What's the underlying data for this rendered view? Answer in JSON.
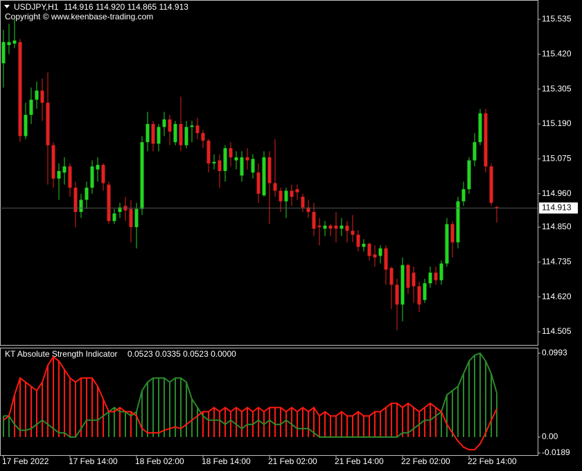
{
  "chart_data": [
    {
      "type": "candlestick",
      "title": "USDJPY,H1",
      "quote": "114.916 114.920 114.865 114.913",
      "subtitle": "Copyright © www.keenbase-trading.com",
      "up_color": "#22d622",
      "down_color": "#e3211f",
      "price_line_color": "#555555",
      "categories": [
        "17 Feb 2022",
        null,
        null,
        null,
        null,
        null,
        null,
        null,
        null,
        null,
        null,
        null,
        "17 Feb 14:00",
        null,
        null,
        null,
        null,
        null,
        null,
        null,
        null,
        null,
        null,
        null,
        "18 Feb 02:00",
        null,
        null,
        null,
        null,
        null,
        null,
        null,
        null,
        null,
        null,
        null,
        "18 Feb 14:00",
        null,
        null,
        null,
        null,
        null,
        null,
        null,
        null,
        null,
        null,
        null,
        "21 Feb 02:00",
        null,
        null,
        null,
        null,
        null,
        null,
        null,
        null,
        null,
        null,
        null,
        "21 Feb 14:00",
        null,
        null,
        null,
        null,
        null,
        null,
        null,
        null,
        null,
        null,
        null,
        "22 Feb 02:00",
        null,
        null,
        null,
        null,
        null,
        null,
        null,
        null,
        null,
        null,
        null,
        "22 Feb 14:00",
        null,
        null,
        null,
        null,
        null
      ],
      "open": [
        115.39,
        115.45,
        115.455,
        115.46,
        115.15,
        115.22,
        115.27,
        115.3,
        115.26,
        115.12,
        115.01,
        115.03,
        115.05,
        114.98,
        114.9,
        114.94,
        114.98,
        115.04,
        115.055,
        114.99,
        114.87,
        114.9,
        114.92,
        114.91,
        114.85,
        114.91,
        115.13,
        115.19,
        115.125,
        115.18,
        115.205,
        115.13,
        115.19,
        115.12,
        115.18,
        115.185,
        115.16,
        115.135,
        115.06,
        115.07,
        115.035,
        115.11,
        115.07,
        115.02,
        115.08,
        115.03,
        115.03,
        114.955,
        115.08,
        114.995,
        114.97,
        114.935,
        114.97,
        114.975,
        114.95,
        114.915,
        114.9,
        114.855,
        114.845,
        114.855,
        114.855,
        114.845,
        114.855,
        114.838,
        114.825,
        114.785,
        114.795,
        114.76,
        114.755,
        114.78,
        114.715,
        114.66,
        114.595,
        114.725,
        114.7,
        114.655,
        114.61,
        114.665,
        114.7,
        114.675,
        114.73,
        114.86,
        114.8,
        114.935,
        114.975,
        115.07,
        115.13,
        115.225,
        115.05,
        114.916
      ],
      "high": [
        115.5,
        115.52,
        115.535,
        115.47,
        115.26,
        115.31,
        115.33,
        115.34,
        115.36,
        115.13,
        115.06,
        115.08,
        115.06,
        115.0,
        114.96,
        115.0,
        115.07,
        115.08,
        115.06,
        115.0,
        114.91,
        114.93,
        114.95,
        114.94,
        114.93,
        115.15,
        115.23,
        115.2,
        115.19,
        115.23,
        115.22,
        115.2,
        115.28,
        115.2,
        115.2,
        115.21,
        115.17,
        115.14,
        115.09,
        115.09,
        115.12,
        115.13,
        115.1,
        115.1,
        115.11,
        115.09,
        115.06,
        115.1,
        115.1,
        115.14,
        114.98,
        114.98,
        114.99,
        114.99,
        114.96,
        114.94,
        114.93,
        114.88,
        114.87,
        114.86,
        114.9,
        114.88,
        114.87,
        114.89,
        114.84,
        114.81,
        114.8,
        114.79,
        114.79,
        114.79,
        114.72,
        114.68,
        114.75,
        114.73,
        114.72,
        114.67,
        114.68,
        114.72,
        114.72,
        114.74,
        114.88,
        114.87,
        114.95,
        115.0,
        115.08,
        115.16,
        115.24,
        115.24,
        115.06,
        114.92
      ],
      "low": [
        115.31,
        115.42,
        115.44,
        115.13,
        115.14,
        115.19,
        115.24,
        115.2,
        114.99,
        114.98,
        114.94,
        114.99,
        114.95,
        114.85,
        114.88,
        114.91,
        114.96,
        115.0,
        114.97,
        114.86,
        114.86,
        114.88,
        114.87,
        114.8,
        114.78,
        114.89,
        115.1,
        115.1,
        115.1,
        115.15,
        115.12,
        115.12,
        115.1,
        115.11,
        115.13,
        115.14,
        115.11,
        115.03,
        115.04,
        114.98,
        115.0,
        115.05,
        115.04,
        115.0,
        115.04,
        115.01,
        114.93,
        114.95,
        114.86,
        114.95,
        114.9,
        114.88,
        114.92,
        114.94,
        114.9,
        114.88,
        114.82,
        114.79,
        114.82,
        114.82,
        114.8,
        114.82,
        114.8,
        114.8,
        114.77,
        114.77,
        114.74,
        114.72,
        114.73,
        114.66,
        114.58,
        114.51,
        114.54,
        114.63,
        114.6,
        114.57,
        114.6,
        114.65,
        114.66,
        114.66,
        114.72,
        114.75,
        114.78,
        114.92,
        114.96,
        115.05,
        115.12,
        115.03,
        114.92,
        114.865
      ],
      "close": [
        115.46,
        115.46,
        115.465,
        115.15,
        115.22,
        115.27,
        115.3,
        115.26,
        115.12,
        115.01,
        115.035,
        115.05,
        114.98,
        114.9,
        114.94,
        114.98,
        115.05,
        115.055,
        114.995,
        114.87,
        114.895,
        114.915,
        114.905,
        114.85,
        114.91,
        115.13,
        115.19,
        115.125,
        115.18,
        115.205,
        115.165,
        115.19,
        115.12,
        115.18,
        115.185,
        115.16,
        115.135,
        115.06,
        115.065,
        115.035,
        115.11,
        115.08,
        115.08,
        115.08,
        115.07,
        115.075,
        114.96,
        115.08,
        114.995,
        114.97,
        114.935,
        114.97,
        114.95,
        114.965,
        114.915,
        114.9,
        114.845,
        114.85,
        114.855,
        114.845,
        114.845,
        114.855,
        114.838,
        114.825,
        114.785,
        114.795,
        114.755,
        114.75,
        114.78,
        114.71,
        114.66,
        114.595,
        114.725,
        114.65,
        114.655,
        114.595,
        114.665,
        114.7,
        114.675,
        114.73,
        114.86,
        114.8,
        114.935,
        114.975,
        115.07,
        115.13,
        115.225,
        115.05,
        114.93,
        114.913
      ],
      "ylim": [
        114.464,
        115.594
      ],
      "yticks": [
        115.535,
        {
          "value": 115.42,
          "label": "115.420"
        },
        115.305,
        {
          "value": 115.19,
          "label": "115.190"
        },
        115.075,
        {
          "value": 114.96,
          "label": "114.960"
        },
        {
          "value": 114.85,
          "label": "114.850"
        },
        114.735,
        {
          "value": 114.62,
          "label": "114.620"
        },
        114.505
      ]
    },
    {
      "type": "line",
      "title": "KT Absolute Strength Indicator",
      "readout": "0.0523 0.0335 0.0523 0.0000",
      "histogram": true,
      "series": [
        {
          "color": "#2a8a2a",
          "values": [
            0.025,
            0.025,
            0.015,
            0.008,
            0.008,
            0.01,
            0.015,
            0.02,
            0.015,
            0.01,
            0.005,
            0.005,
            0.0,
            0.0,
            0.01,
            0.02,
            0.02,
            0.02,
            0.025,
            0.03,
            0.035,
            0.03,
            0.03,
            0.025,
            0.03,
            0.055,
            0.065,
            0.07,
            0.07,
            0.07,
            0.065,
            0.07,
            0.07,
            0.065,
            0.045,
            0.035,
            0.025,
            0.02,
            0.02,
            0.02,
            0.015,
            0.02,
            0.015,
            0.01,
            0.015,
            0.015,
            0.02,
            0.015,
            0.02,
            0.015,
            0.015,
            0.02,
            0.015,
            0.01,
            0.01,
            0.01,
            0.005,
            0.0,
            0.0,
            0.0,
            0.0,
            0.0,
            0.0,
            0.0,
            0.0,
            0.0,
            0.0,
            0.0,
            0.0,
            0.0,
            0.0,
            0.0,
            0.005,
            0.005,
            0.01,
            0.015,
            0.02,
            0.02,
            0.025,
            0.03,
            0.05,
            0.055,
            0.06,
            0.075,
            0.09,
            0.097,
            0.0993,
            0.09,
            0.075,
            0.0523
          ]
        },
        {
          "color": "#ff1a10",
          "values": [
            0.02,
            0.025,
            0.05,
            0.07,
            0.065,
            0.06,
            0.055,
            0.065,
            0.085,
            0.095,
            0.09,
            0.08,
            0.07,
            0.065,
            0.07,
            0.07,
            0.07,
            0.06,
            0.045,
            0.03,
            0.03,
            0.035,
            0.03,
            0.03,
            0.025,
            0.01,
            0.005,
            0.005,
            0.005,
            0.008,
            0.01,
            0.012,
            0.01,
            0.015,
            0.02,
            0.025,
            0.03,
            0.03,
            0.035,
            0.03,
            0.035,
            0.03,
            0.035,
            0.03,
            0.035,
            0.03,
            0.035,
            0.03,
            0.035,
            0.035,
            0.035,
            0.03,
            0.035,
            0.03,
            0.035,
            0.03,
            0.035,
            0.025,
            0.03,
            0.025,
            0.025,
            0.03,
            0.025,
            0.025,
            0.03,
            0.025,
            0.025,
            0.03,
            0.03,
            0.035,
            0.04,
            0.04,
            0.035,
            0.04,
            0.035,
            0.03,
            0.035,
            0.04,
            0.035,
            0.03,
            0.015,
            0.005,
            -0.005,
            -0.012,
            -0.015,
            -0.015,
            -0.008,
            0.005,
            0.02,
            0.0335
          ]
        }
      ],
      "ylim": [
        -0.0189,
        0.0993
      ],
      "yticks": [
        0.0993,
        {
          "value": 0,
          "label": "0.00"
        },
        -0.0189
      ]
    }
  ]
}
